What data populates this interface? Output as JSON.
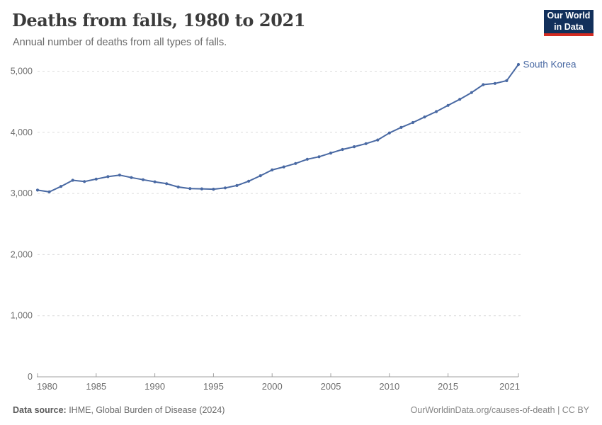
{
  "header": {
    "title": "Deaths from falls, 1980 to 2021",
    "subtitle": "Annual number of deaths from all types of falls."
  },
  "logo": {
    "line1": "Our World",
    "line2": "in Data",
    "bg_color": "#12305b",
    "accent_color": "#d42b21"
  },
  "chart_data": {
    "type": "line",
    "title": "Deaths from falls, 1980 to 2021",
    "x": [
      1980,
      1981,
      1982,
      1983,
      1984,
      1985,
      1986,
      1987,
      1988,
      1989,
      1990,
      1991,
      1992,
      1993,
      1994,
      1995,
      1996,
      1997,
      1998,
      1999,
      2000,
      2001,
      2002,
      2003,
      2004,
      2005,
      2006,
      2007,
      2008,
      2009,
      2010,
      2011,
      2012,
      2013,
      2014,
      2015,
      2016,
      2017,
      2018,
      2019,
      2020,
      2021
    ],
    "series": [
      {
        "name": "South Korea",
        "color": "#4969a3",
        "values": [
          3055,
          3025,
          3115,
          3215,
          3195,
          3235,
          3275,
          3300,
          3260,
          3225,
          3190,
          3160,
          3105,
          3080,
          3075,
          3070,
          3090,
          3130,
          3200,
          3290,
          3385,
          3435,
          3490,
          3560,
          3600,
          3660,
          3720,
          3765,
          3815,
          3875,
          3990,
          4080,
          4160,
          4250,
          4340,
          4440,
          4540,
          4650,
          4780,
          4800,
          4845,
          5110
        ]
      }
    ],
    "ylim": [
      0,
      5000
    ],
    "yticks": [
      0,
      1000,
      2000,
      3000,
      4000,
      5000
    ],
    "y_tick_labels": [
      "0",
      "1,000",
      "2,000",
      "3,000",
      "4,000",
      "5,000"
    ],
    "xticks": [
      1980,
      1985,
      1990,
      1995,
      2000,
      2005,
      2010,
      2015,
      2021
    ],
    "grid": "horizontal dashed",
    "legend": "end-of-line label",
    "colors": {
      "grid": "#dcdcdc",
      "axis": "#a1a1a1",
      "tick_text": "#6e6e6e"
    }
  },
  "footer": {
    "datasource_label": "Data source:",
    "datasource_text": " IHME, Global Burden of Disease (2024)",
    "credit": "OurWorldinData.org/causes-of-death | CC BY"
  }
}
